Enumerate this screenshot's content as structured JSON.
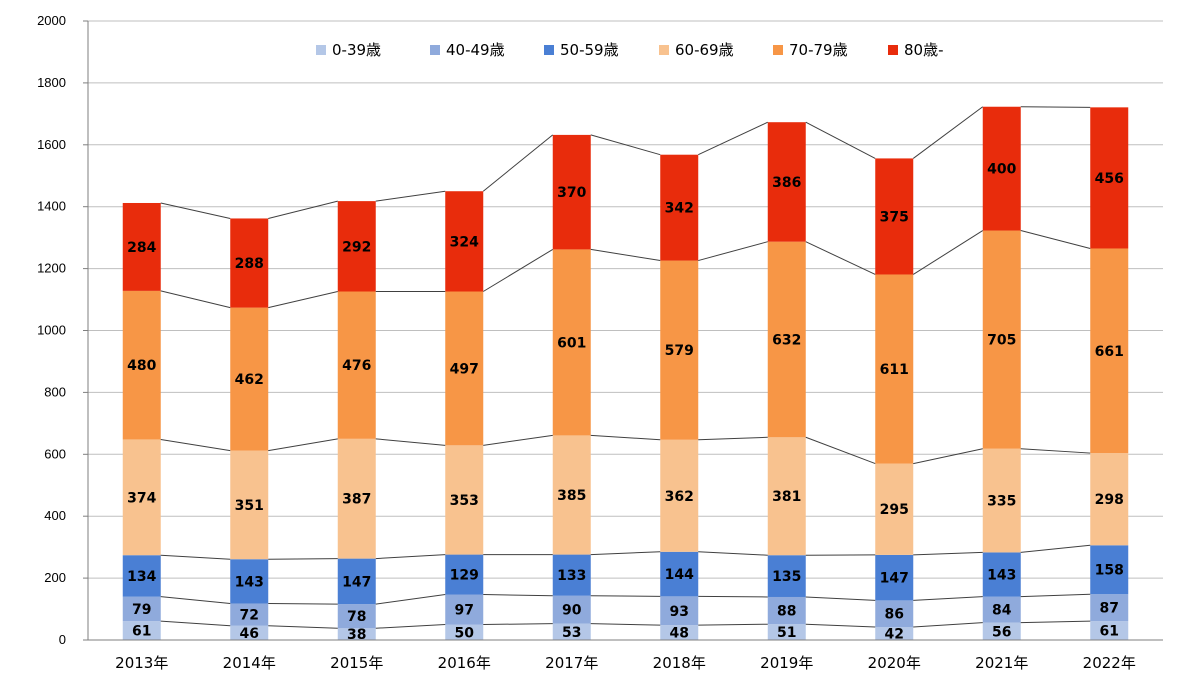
{
  "chart_data": {
    "type": "bar",
    "stacked": true,
    "categories": [
      "2013年",
      "2014年",
      "2015年",
      "2016年",
      "2017年",
      "2018年",
      "2019年",
      "2020年",
      "2021年",
      "2022年"
    ],
    "series": [
      {
        "name": "0-39歳",
        "color": "#b4c7e7",
        "values": [
          61,
          46,
          38,
          50,
          53,
          48,
          51,
          42,
          56,
          61
        ]
      },
      {
        "name": "40-49歳",
        "color": "#8faadc",
        "values": [
          79,
          72,
          78,
          97,
          90,
          93,
          88,
          86,
          84,
          87
        ]
      },
      {
        "name": "50-59歳",
        "color": "#4a7fd4",
        "values": [
          134,
          143,
          147,
          129,
          133,
          144,
          135,
          147,
          143,
          158
        ]
      },
      {
        "name": "60-69歳",
        "color": "#f8c28f",
        "values": [
          374,
          351,
          387,
          353,
          385,
          362,
          381,
          295,
          335,
          298
        ]
      },
      {
        "name": "70-79歳",
        "color": "#f79646",
        "values": [
          480,
          462,
          476,
          497,
          601,
          579,
          632,
          611,
          705,
          661
        ]
      },
      {
        "name": "80歳-",
        "color": "#e82c0c",
        "values": [
          284,
          288,
          292,
          324,
          370,
          342,
          386,
          375,
          400,
          456
        ]
      }
    ],
    "ylim": [
      0,
      2000
    ],
    "yticks": [
      0,
      200,
      400,
      600,
      800,
      1000,
      1200,
      1400,
      1600,
      1800,
      2000
    ],
    "grid": true,
    "legend_position": "top",
    "series_lines": true
  }
}
